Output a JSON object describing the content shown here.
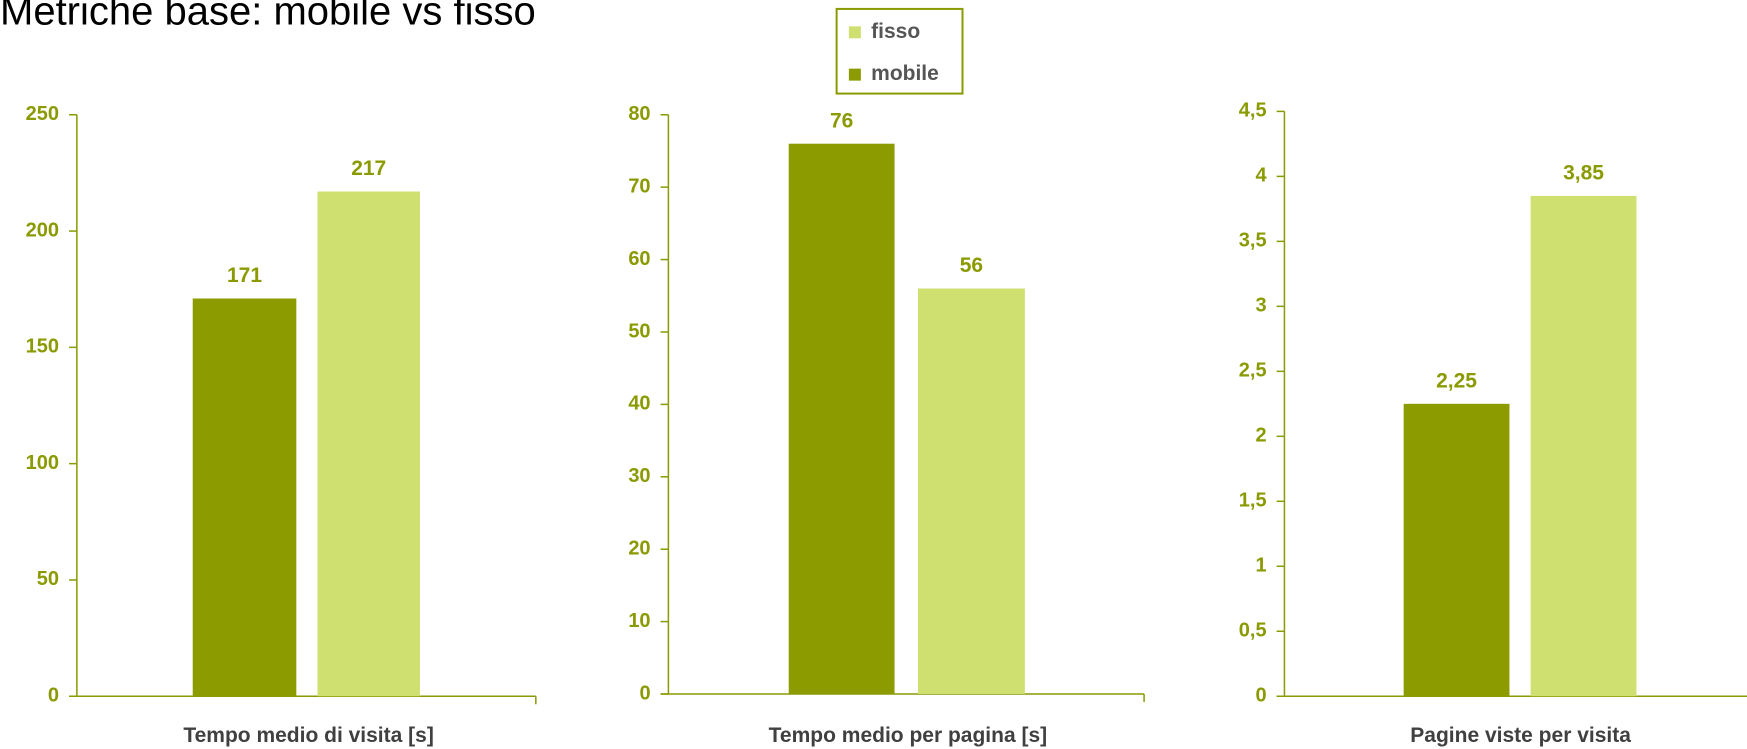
{
  "title": "Metriche base: mobile vs fisso",
  "chart_data": [
    {
      "type": "bar",
      "categories": [
        "Tempo medio di visita [s]"
      ],
      "series": [
        {
          "name": "mobile",
          "color": "#8c9c00",
          "values": [
            171
          ]
        },
        {
          "name": "fisso",
          "color": "#cfe070",
          "values": [
            217
          ]
        }
      ],
      "ylim": [
        0,
        250
      ],
      "yticks": [
        0,
        50,
        100,
        150,
        200,
        250
      ]
    },
    {
      "type": "bar",
      "categories": [
        "Tempo medio per pagina [s]"
      ],
      "series": [
        {
          "name": "mobile",
          "color": "#8c9c00",
          "values": [
            76
          ]
        },
        {
          "name": "fisso",
          "color": "#cfe070",
          "values": [
            56
          ]
        }
      ],
      "ylim": [
        0,
        80
      ],
      "yticks": [
        0,
        10,
        20,
        30,
        40,
        50,
        60,
        70,
        80
      ],
      "legend": "top"
    },
    {
      "type": "bar",
      "categories": [
        "Pagine viste per visita"
      ],
      "series": [
        {
          "name": "mobile",
          "color": "#8c9c00",
          "values": [
            2.25
          ],
          "value_labels": [
            "2,25"
          ]
        },
        {
          "name": "fisso",
          "color": "#cfe070",
          "values": [
            3.85
          ],
          "value_labels": [
            "3,85"
          ]
        }
      ],
      "ylim": [
        0,
        4.5
      ],
      "yticks": [
        0,
        {
          "value": 0.5,
          "label": "0,5"
        },
        1,
        {
          "value": 1.5,
          "label": "1,5"
        },
        2,
        {
          "value": 2.5,
          "label": "2,5"
        },
        3,
        {
          "value": 3.5,
          "label": "3,5"
        },
        4,
        {
          "value": 4.5,
          "label": "4,5"
        }
      ]
    }
  ]
}
